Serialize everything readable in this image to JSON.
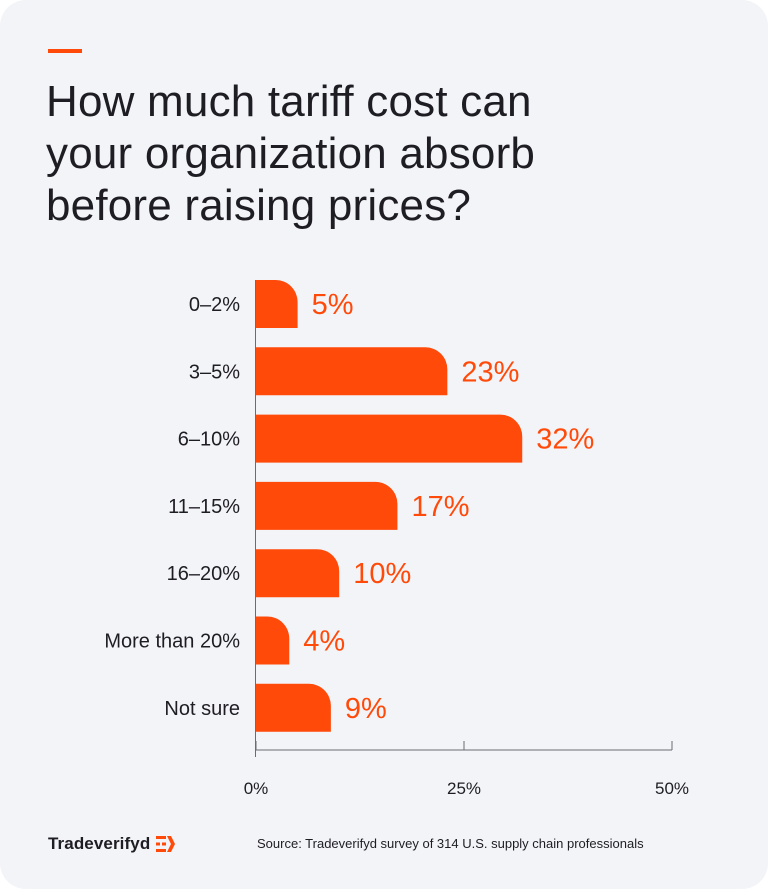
{
  "colors": {
    "accent": "#ff4a0a",
    "text": "#1d1d23",
    "background": "#f3f4f8"
  },
  "title_lines": [
    "How much tariff cost can",
    "your organization absorb",
    "before raising prices?"
  ],
  "chart_data": {
    "type": "bar",
    "orientation": "horizontal",
    "categories": [
      "0–2%",
      "3–5%",
      "6–10%",
      "11–15%",
      "16–20%",
      "More than 20%",
      "Not sure"
    ],
    "values": [
      5,
      23,
      32,
      17,
      10,
      4,
      9
    ],
    "value_labels": [
      "5%",
      "23%",
      "32%",
      "17%",
      "10%",
      "4%",
      "9%"
    ],
    "xlim": [
      0,
      50
    ],
    "xticks": [
      0,
      25,
      50
    ],
    "xtick_labels": [
      "0%",
      "25%",
      "50%"
    ],
    "grid": false,
    "legend": "none"
  },
  "footer": {
    "brand": "Tradeverifyd",
    "brand_icon": "tradeverifyd-logo-icon",
    "source": "Source: Tradeverifyd survey of 314 U.S. supply chain professionals"
  }
}
